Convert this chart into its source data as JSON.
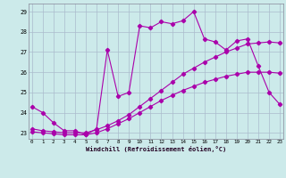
{
  "xlabel": "Windchill (Refroidissement éolien,°C)",
  "bg_color": "#cceaea",
  "line_color": "#aa00aa",
  "grid_color": "#aabbcc",
  "hours": [
    0,
    1,
    2,
    3,
    4,
    5,
    6,
    7,
    8,
    9,
    10,
    11,
    12,
    13,
    14,
    15,
    16,
    17,
    18,
    19,
    20,
    21,
    22,
    23
  ],
  "line1": [
    24.3,
    24.0,
    23.5,
    23.1,
    23.1,
    22.9,
    23.2,
    27.1,
    24.8,
    25.0,
    28.3,
    28.2,
    28.5,
    28.4,
    28.55,
    29.0,
    27.65,
    27.5,
    27.1,
    27.55,
    27.65,
    26.3,
    25.0,
    24.4
  ],
  "line2": [
    23.2,
    23.1,
    23.05,
    23.0,
    23.0,
    23.0,
    23.15,
    23.35,
    23.6,
    23.9,
    24.3,
    24.7,
    25.1,
    25.5,
    25.9,
    26.2,
    26.5,
    26.75,
    27.0,
    27.2,
    27.4,
    27.45,
    27.5,
    27.45
  ],
  "line3": [
    23.05,
    23.0,
    22.95,
    22.9,
    22.9,
    22.9,
    23.0,
    23.2,
    23.45,
    23.7,
    24.0,
    24.3,
    24.6,
    24.85,
    25.1,
    25.3,
    25.5,
    25.65,
    25.8,
    25.9,
    26.0,
    26.0,
    26.0,
    25.95
  ],
  "ylim": [
    22.7,
    29.4
  ],
  "yticks": [
    23,
    24,
    25,
    26,
    27,
    28,
    29
  ],
  "xticks": [
    0,
    1,
    2,
    3,
    4,
    5,
    6,
    7,
    8,
    9,
    10,
    11,
    12,
    13,
    14,
    15,
    16,
    17,
    18,
    19,
    20,
    21,
    22,
    23
  ]
}
